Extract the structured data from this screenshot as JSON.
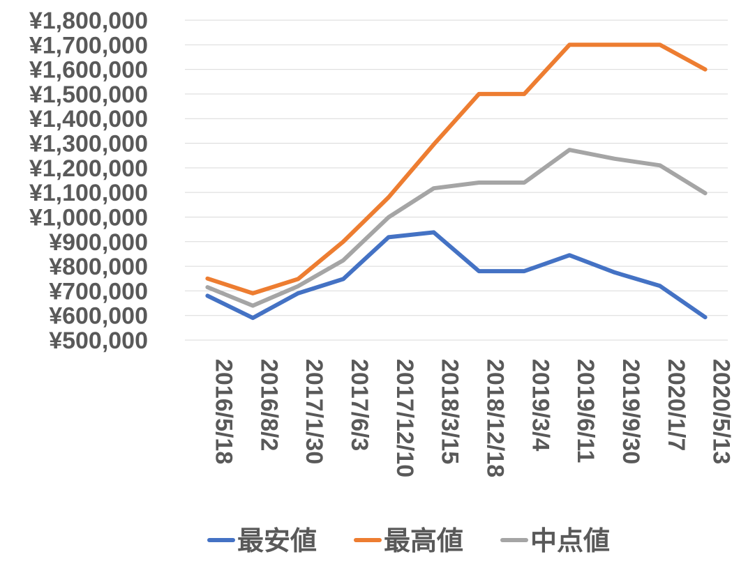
{
  "chart_data": {
    "type": "line",
    "categories": [
      "2016/5/18",
      "2016/8/2",
      "2017/1/30",
      "2017/6/3",
      "2017/12/10",
      "2018/3/15",
      "2018/12/18",
      "2019/3/4",
      "2019/6/11",
      "2019/9/30",
      "2020/1/7",
      "2020/5/13"
    ],
    "series": [
      {
        "name": "最安値",
        "color": "#4472c4",
        "values": [
          680000,
          590000,
          690000,
          748000,
          918000,
          938000,
          780000,
          780000,
          845000,
          775000,
          720000,
          593000
        ]
      },
      {
        "name": "最高値",
        "color": "#ed7d31",
        "values": [
          750000,
          690000,
          748000,
          900000,
          1080000,
          1295000,
          1500000,
          1500000,
          1700000,
          1700000,
          1700000,
          1600000
        ]
      },
      {
        "name": "中点値",
        "color": "#a5a5a5",
        "values": [
          715000,
          640000,
          719000,
          824000,
          999000,
          1117000,
          1140000,
          1140000,
          1273000,
          1237000,
          1210000,
          1097000
        ]
      }
    ],
    "y_ticks": [
      "¥500,000",
      "¥600,000",
      "¥700,000",
      "¥800,000",
      "¥900,000",
      "¥1,000,000",
      "¥1,100,000",
      "¥1,200,000",
      "¥1,300,000",
      "¥1,400,000",
      "¥1,500,000",
      "¥1,600,000",
      "¥1,700,000",
      "¥1,800,000"
    ],
    "ylim": [
      500000,
      1800000
    ],
    "y_step": 100000,
    "title": "",
    "xlabel": "",
    "ylabel": "",
    "grid": true,
    "legend_position": "bottom"
  }
}
